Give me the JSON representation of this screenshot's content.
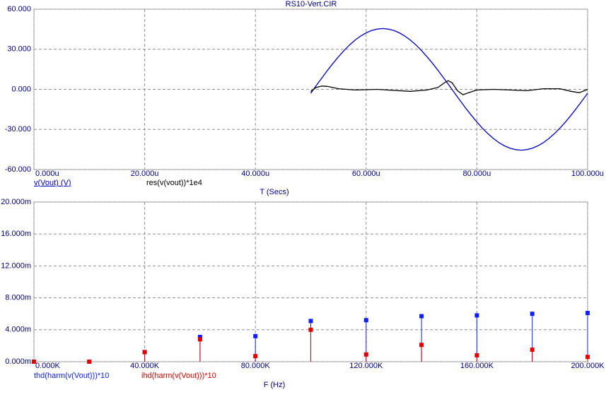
{
  "chart_data": [
    {
      "type": "line",
      "title": "RS10-Vert.CIR",
      "xlabel": "T (Secs)",
      "xlim": [
        0,
        100
      ],
      "ylim": [
        -60,
        60
      ],
      "grid": true,
      "xticks": [
        {
          "value": 0,
          "label": "0.000u"
        },
        {
          "value": 20,
          "label": "20.000u"
        },
        {
          "value": 40,
          "label": "40.000u"
        },
        {
          "value": 60,
          "label": "60.000u"
        },
        {
          "value": 80,
          "label": "80.000u"
        },
        {
          "value": 100,
          "label": "100.000u"
        }
      ],
      "yticks": [
        {
          "value": 60,
          "label": "60.000"
        },
        {
          "value": 30,
          "label": "30.000"
        },
        {
          "value": 0,
          "label": "0.000"
        },
        {
          "value": -30,
          "label": "-30.000"
        },
        {
          "value": -60,
          "label": "-60.000"
        }
      ],
      "series": [
        {
          "name": "v(Vout) (V)",
          "color": "#0000c0",
          "x": [
            50,
            51,
            52,
            53,
            54,
            55,
            56,
            57,
            58,
            59,
            60,
            61,
            62,
            63,
            64,
            65,
            66,
            67,
            68,
            69,
            70,
            71,
            72,
            73,
            74,
            75,
            76,
            77,
            78,
            79,
            80,
            81,
            82,
            83,
            84,
            85,
            86,
            87,
            88,
            89,
            90,
            91,
            92,
            93,
            94,
            95,
            96,
            97,
            98,
            99,
            100
          ],
          "values": [
            -2.9,
            2.9,
            8.5,
            14.1,
            19.4,
            24.4,
            29.0,
            33.2,
            36.8,
            39.9,
            42.3,
            44.1,
            45.1,
            45.5,
            45.1,
            44.1,
            42.3,
            39.9,
            36.8,
            33.2,
            29.0,
            24.4,
            19.4,
            14.1,
            8.5,
            2.9,
            -2.9,
            -8.5,
            -14.1,
            -19.4,
            -24.4,
            -29.0,
            -33.2,
            -36.8,
            -39.9,
            -42.3,
            -44.1,
            -45.1,
            -45.5,
            -45.1,
            -44.1,
            -42.3,
            -39.9,
            -36.8,
            -33.2,
            -29.0,
            -24.4,
            -19.4,
            -14.1,
            -8.5,
            -2.9
          ]
        },
        {
          "name": "res(v(vout))*1e4",
          "color": "#000000",
          "x": [
            50,
            51,
            52,
            53,
            55,
            58,
            62,
            65,
            68,
            71,
            73,
            74,
            74.8,
            75.5,
            76.5,
            77.5,
            78.5,
            80,
            83,
            86,
            89,
            92,
            95,
            97,
            98.5,
            100
          ],
          "values": [
            -1.5,
            1.5,
            2.5,
            2.2,
            0.5,
            -0.5,
            0,
            -0.8,
            -1.5,
            -0.5,
            1.5,
            4.5,
            6.5,
            5,
            -1,
            -4,
            -2.5,
            -0.5,
            0,
            -0.5,
            -1,
            0.5,
            0.5,
            -1.5,
            -2.5,
            0
          ]
        }
      ]
    },
    {
      "type": "stem",
      "xlabel": "F (Hz)",
      "xlim": [
        0,
        200
      ],
      "ylim": [
        0,
        20
      ],
      "grid": true,
      "xticks": [
        {
          "value": 0,
          "label": "0.000K"
        },
        {
          "value": 40,
          "label": "40.000K"
        },
        {
          "value": 80,
          "label": "80.000K"
        },
        {
          "value": 120,
          "label": "120.000K"
        },
        {
          "value": 160,
          "label": "160.000K"
        },
        {
          "value": 200,
          "label": "200.000K"
        }
      ],
      "yticks": [
        {
          "value": 20,
          "label": "20.000m"
        },
        {
          "value": 16,
          "label": "16.000m"
        },
        {
          "value": 12,
          "label": "12.000m"
        },
        {
          "value": 8,
          "label": "8.000m"
        },
        {
          "value": 4,
          "label": "4.000m"
        },
        {
          "value": 0,
          "label": "0.000m"
        }
      ],
      "x": [
        0,
        20,
        40,
        60,
        80,
        100,
        120,
        140,
        160,
        180,
        200
      ],
      "series": [
        {
          "name": "thd(harm(v(Vout)))*10",
          "color": "#1020ff",
          "values": [
            0,
            0,
            1.2,
            3.1,
            3.2,
            5.1,
            5.2,
            5.7,
            5.8,
            6.0,
            6.1
          ]
        },
        {
          "name": "ihd(harm(v(Vout)))*10",
          "color": "#e00000",
          "values": [
            0,
            0,
            1.2,
            2.8,
            0.7,
            4.0,
            0.9,
            2.1,
            0.8,
            1.5,
            0.6
          ]
        }
      ]
    }
  ]
}
